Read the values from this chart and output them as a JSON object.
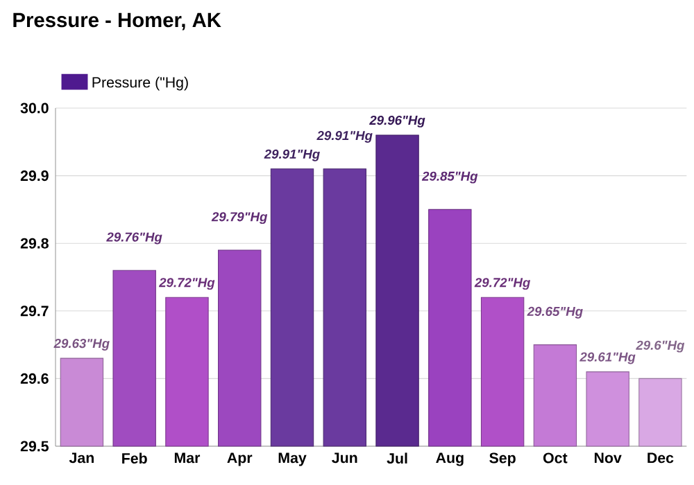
{
  "chart_data": {
    "type": "bar",
    "title": "Pressure - Homer, AK",
    "categories": [
      "Jan",
      "Feb",
      "Mar",
      "Apr",
      "May",
      "Jun",
      "Jul",
      "Aug",
      "Sep",
      "Oct",
      "Nov",
      "Dec"
    ],
    "series": [
      {
        "name": "Pressure (\"Hg)",
        "color": "#4f1a8f",
        "colors": [
          "#c98ad6",
          "#a04cc0",
          "#b04fc8",
          "#9c48bf",
          "#6a3a9f",
          "#6a3a9f",
          "#5a2a8f",
          "#9a42bf",
          "#b050c8",
          "#c47ad6",
          "#cf90dd",
          "#d9a8e4"
        ],
        "values": [
          29.63,
          29.76,
          29.72,
          29.79,
          29.91,
          29.91,
          29.96,
          29.85,
          29.72,
          29.65,
          29.61,
          29.6
        ],
        "value_labels": [
          "29.63\"Hg",
          "29.76\"Hg",
          "29.72\"Hg",
          "29.79\"Hg",
          "29.91\"Hg",
          "29.91\"Hg",
          "29.96\"Hg",
          "29.85\"Hg",
          "29.72\"Hg",
          "29.65\"Hg",
          "29.61\"Hg",
          "29.6\"Hg"
        ]
      }
    ],
    "ylim": [
      29.5,
      30.0
    ],
    "yticks": [
      29.5,
      29.6,
      29.7,
      29.8,
      29.9,
      {
        "value": 30.0,
        "label": "30.0"
      }
    ],
    "grid": "y",
    "legend": "top left"
  }
}
